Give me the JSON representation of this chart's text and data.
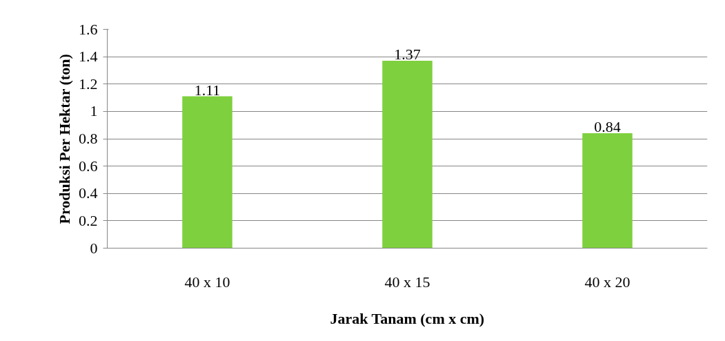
{
  "chart_data": {
    "type": "bar",
    "xlabel": "Jarak Tanam (cm x cm)",
    "ylabel": "Produksi Per Hektar (ton)",
    "categories": [
      "40 x 10",
      "40 x 15",
      "40 x 20"
    ],
    "values": [
      1.11,
      1.37,
      0.84
    ],
    "color": "#7ed03e",
    "ylim": [
      0,
      1.6
    ],
    "yticks": [
      0,
      0.2,
      0.4,
      0.6,
      0.8,
      1,
      1.2,
      1.4,
      1.6
    ],
    "grid": "y",
    "data_labels": true
  }
}
